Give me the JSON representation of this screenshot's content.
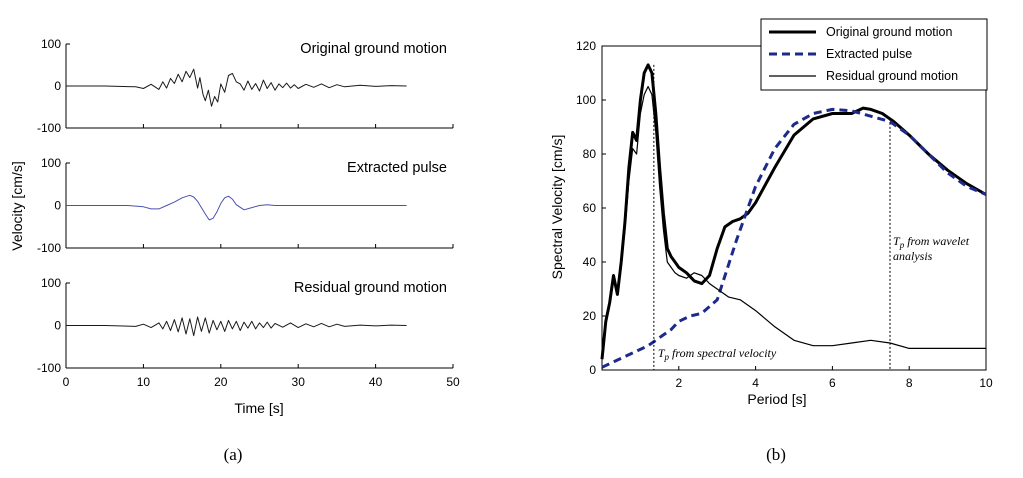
{
  "chart_data": [
    {
      "id": "a",
      "type": "line",
      "caption": "(a)",
      "xlabel": "Time [s]",
      "ylabel": "Velocity [cm/s]",
      "xlim": [
        0,
        50
      ],
      "xticks": [
        0,
        10,
        20,
        30,
        40,
        50
      ],
      "panels": [
        {
          "title": "Original ground motion",
          "ylim": [
            -100,
            100
          ],
          "yticks": [
            -100,
            0,
            100
          ],
          "color": "#1a1a1a",
          "x": [
            0,
            5,
            9,
            10,
            11,
            12,
            12.5,
            13,
            13.5,
            14,
            14.5,
            15,
            15.5,
            16,
            16.5,
            17,
            17.3,
            17.7,
            18,
            18.4,
            18.8,
            19.2,
            19.6,
            20,
            20.5,
            21,
            21.5,
            22,
            22.5,
            23,
            23.5,
            24,
            24.5,
            25,
            25.5,
            26,
            26.5,
            27,
            27.5,
            28,
            28.5,
            29,
            29.5,
            30,
            31,
            32,
            33,
            34,
            35,
            36,
            38,
            40,
            42,
            44
          ],
          "values": [
            0,
            0,
            -2,
            -6,
            4,
            -8,
            10,
            -5,
            18,
            6,
            28,
            10,
            35,
            20,
            40,
            -5,
            20,
            -20,
            -35,
            -10,
            -48,
            -25,
            -38,
            5,
            -15,
            25,
            30,
            10,
            5,
            -10,
            12,
            -8,
            6,
            -12,
            14,
            -6,
            8,
            -10,
            5,
            -4,
            7,
            -5,
            3,
            -6,
            4,
            -3,
            5,
            -4,
            3,
            -2,
            2,
            -1,
            1,
            0
          ]
        },
        {
          "title": "Extracted pulse",
          "ylim": [
            -100,
            100
          ],
          "yticks": [
            -100,
            0,
            100
          ],
          "color": "#4a52b0",
          "x": [
            0,
            8,
            10,
            11,
            12,
            13,
            14,
            15,
            16,
            16.5,
            17,
            17.5,
            18,
            18.5,
            19,
            19.5,
            20,
            20.5,
            21,
            21.5,
            22,
            23,
            24,
            25,
            26,
            27,
            30,
            35,
            44
          ],
          "values": [
            0,
            0,
            -3,
            -8,
            -8,
            0,
            8,
            18,
            24,
            20,
            10,
            -5,
            -20,
            -34,
            -30,
            -15,
            5,
            18,
            22,
            15,
            2,
            -10,
            -5,
            0,
            2,
            0,
            0,
            0,
            0
          ]
        },
        {
          "title": "Residual ground motion",
          "ylim": [
            -100,
            100
          ],
          "yticks": [
            -100,
            0,
            100
          ],
          "color": "#1a1a1a",
          "x": [
            0,
            5,
            9,
            10,
            11,
            12,
            12.5,
            13,
            13.5,
            14,
            14.5,
            15,
            15.5,
            16,
            16.5,
            17,
            17.5,
            18,
            18.5,
            19,
            19.5,
            20,
            20.5,
            21,
            21.5,
            22,
            22.5,
            23,
            23.5,
            24,
            24.5,
            25,
            25.5,
            26,
            26.5,
            27,
            28,
            29,
            30,
            31,
            32,
            33,
            34,
            35,
            36,
            38,
            40,
            42,
            44
          ],
          "values": [
            0,
            0,
            -2,
            3,
            -5,
            6,
            -8,
            10,
            -12,
            14,
            -15,
            18,
            -20,
            16,
            -24,
            20,
            -14,
            18,
            -18,
            12,
            -10,
            10,
            -14,
            12,
            -8,
            10,
            -12,
            8,
            -6,
            10,
            -8,
            6,
            -5,
            8,
            -6,
            5,
            -4,
            6,
            -5,
            4,
            -3,
            5,
            -3,
            3,
            -2,
            1,
            -1,
            1,
            0
          ]
        }
      ]
    },
    {
      "id": "b",
      "type": "line",
      "caption": "(b)",
      "xlabel": "Period [s]",
      "ylabel": "Spectral Velocity [cm/s]",
      "xlim": [
        0,
        10
      ],
      "ylim": [
        0,
        120
      ],
      "xticks": [
        2,
        4,
        6,
        8,
        10
      ],
      "yticks": [
        0,
        20,
        40,
        60,
        80,
        100,
        120
      ],
      "legend_position": "top-right",
      "series": [
        {
          "name": "Original ground motion",
          "style": "thick-solid",
          "color": "#000000",
          "x": [
            0,
            0.1,
            0.2,
            0.3,
            0.4,
            0.5,
            0.6,
            0.7,
            0.8,
            0.9,
            1.0,
            1.1,
            1.2,
            1.3,
            1.4,
            1.5,
            1.6,
            1.7,
            1.8,
            1.9,
            2.0,
            2.2,
            2.4,
            2.6,
            2.8,
            3.0,
            3.2,
            3.4,
            3.6,
            3.8,
            4.0,
            4.5,
            5.0,
            5.5,
            6.0,
            6.5,
            6.8,
            7.0,
            7.3,
            7.6,
            8.0,
            8.5,
            9.0,
            9.5,
            10.0
          ],
          "values": [
            4,
            18,
            25,
            35,
            28,
            40,
            55,
            75,
            88,
            85,
            100,
            110,
            113,
            110,
            95,
            75,
            58,
            45,
            42,
            40,
            38,
            36,
            33,
            32,
            35,
            45,
            53,
            55,
            56,
            58,
            62,
            75,
            87,
            93,
            95,
            95,
            97,
            96.5,
            95,
            92,
            87,
            80,
            74,
            69,
            65
          ]
        },
        {
          "name": "Extracted pulse",
          "style": "thick-dashed",
          "color": "#1e2a8a",
          "x": [
            0,
            0.3,
            0.6,
            0.9,
            1.2,
            1.4,
            1.6,
            1.8,
            2.0,
            2.3,
            2.6,
            3.0,
            3.5,
            4.0,
            4.5,
            5.0,
            5.5,
            6.0,
            6.5,
            7.0,
            7.5,
            8.0,
            8.5,
            9.0,
            9.5,
            10.0
          ],
          "values": [
            1,
            3,
            5,
            7,
            9,
            11,
            13,
            15,
            18,
            20,
            21,
            26,
            48,
            68,
            82,
            91,
            95,
            96.5,
            96,
            94,
            92,
            87,
            80,
            73,
            68,
            65
          ]
        },
        {
          "name": "Residual ground motion",
          "style": "thin-solid",
          "color": "#000000",
          "x": [
            0,
            0.1,
            0.2,
            0.3,
            0.4,
            0.5,
            0.6,
            0.7,
            0.8,
            0.9,
            1.0,
            1.1,
            1.2,
            1.3,
            1.4,
            1.5,
            1.6,
            1.7,
            1.8,
            1.9,
            2.0,
            2.2,
            2.4,
            2.6,
            2.8,
            3.0,
            3.3,
            3.6,
            4.0,
            4.5,
            5.0,
            5.5,
            6.0,
            6.5,
            7.0,
            7.5,
            8.0,
            8.5,
            9.0,
            9.5,
            10.0
          ],
          "values": [
            4,
            17,
            24,
            33,
            28,
            38,
            52,
            70,
            82,
            80,
            95,
            102,
            105,
            102,
            88,
            68,
            52,
            40,
            38,
            36,
            35,
            34,
            36,
            35,
            32,
            30,
            27,
            26,
            22,
            16,
            11,
            9,
            9,
            10,
            11,
            10,
            8,
            8,
            8,
            8,
            8
          ]
        }
      ],
      "annotations": [
        {
          "text": "T",
          "sub": "p",
          "rest": " from spectral velocity",
          "x_value": 1.35
        },
        {
          "text": "T",
          "sub": "p",
          "rest": " from wavelet",
          "line2": "analysis",
          "x_value": 7.5
        }
      ]
    }
  ]
}
